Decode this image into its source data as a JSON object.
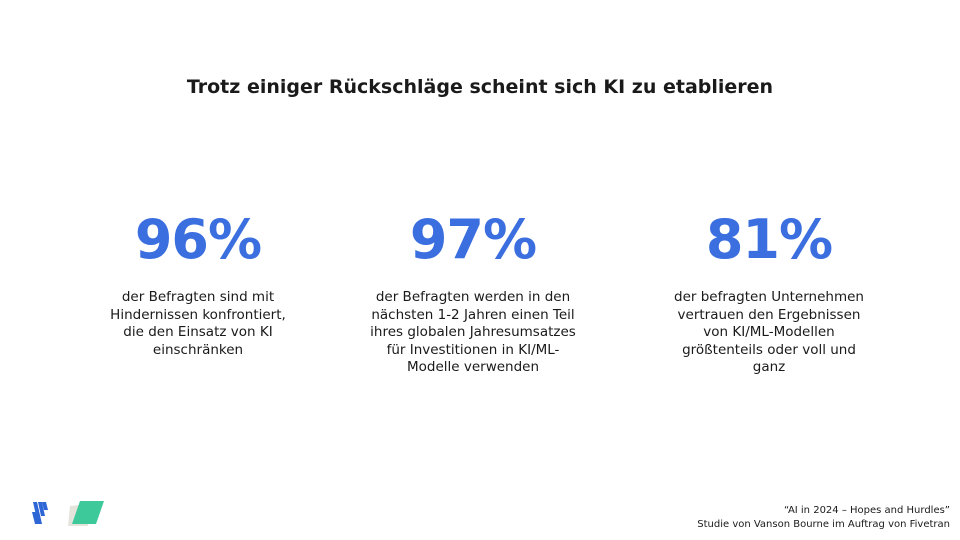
{
  "title": "Trotz einiger Rückschläge scheint sich KI zu etablieren",
  "stats": [
    {
      "value": "96%",
      "lines": [
        "der Befragten sind mit",
        "Hindernissen konfrontiert,",
        "die den Einsatz von KI",
        "einschränken"
      ]
    },
    {
      "value": "97%",
      "lines": [
        "der Befragten werden in den",
        "nächsten 1-2 Jahren einen Teil",
        "ihres globalen Jahresumsatzes",
        "für Investitionen in KI/ML-",
        "Modelle verwenden"
      ]
    },
    {
      "value": "81%",
      "lines": [
        "der befragten Unternehmen",
        "vertrauen den Ergebnissen",
        "von KI/ML-Modellen",
        "größtenteils oder voll und",
        "ganz"
      ]
    }
  ],
  "footer": {
    "source": "“AI in 2024 – Hopes and Hurdles”",
    "credit": "Studie von Vanson Bourne im Auftrag von Fivetran"
  }
}
